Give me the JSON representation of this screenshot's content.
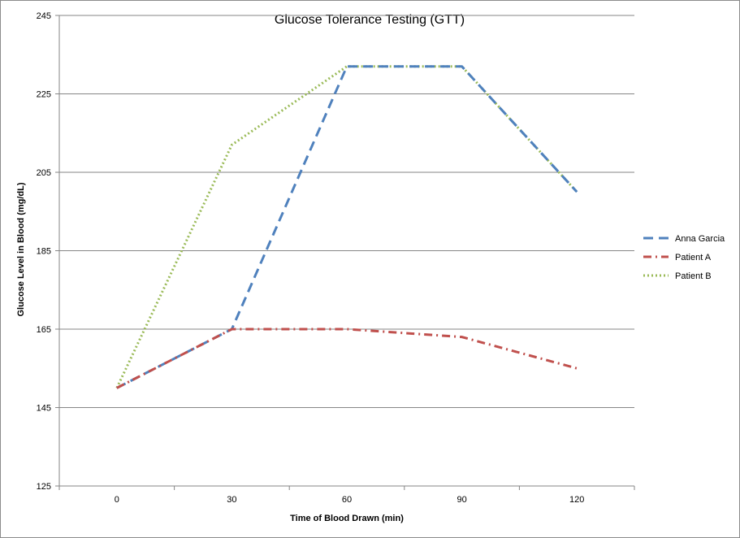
{
  "chart_data": {
    "type": "line",
    "title": "Glucose Tolerance Testing (GTT)",
    "xlabel": "Time of Blood Drawn (min)",
    "ylabel": "Glucose Level in Blood (mg/dL)",
    "categories": [
      "0",
      "30",
      "60",
      "90",
      "120"
    ],
    "ylim": [
      125,
      245
    ],
    "yticks": [
      "125",
      "145",
      "165",
      "185",
      "205",
      "225",
      "245"
    ],
    "grid": true,
    "legend_position": "right",
    "series": [
      {
        "name": "Anna Garcia",
        "values": [
          150,
          165,
          232,
          232,
          200
        ],
        "color": "#4f81bd",
        "dash": "dashed"
      },
      {
        "name": "Patient A",
        "values": [
          150,
          165,
          165,
          163,
          155
        ],
        "color": "#c0504d",
        "dash": "dash-dot"
      },
      {
        "name": "Patient B",
        "values": [
          150,
          212,
          232,
          232,
          200
        ],
        "color": "#9bbb59",
        "dash": "dotted"
      }
    ]
  }
}
